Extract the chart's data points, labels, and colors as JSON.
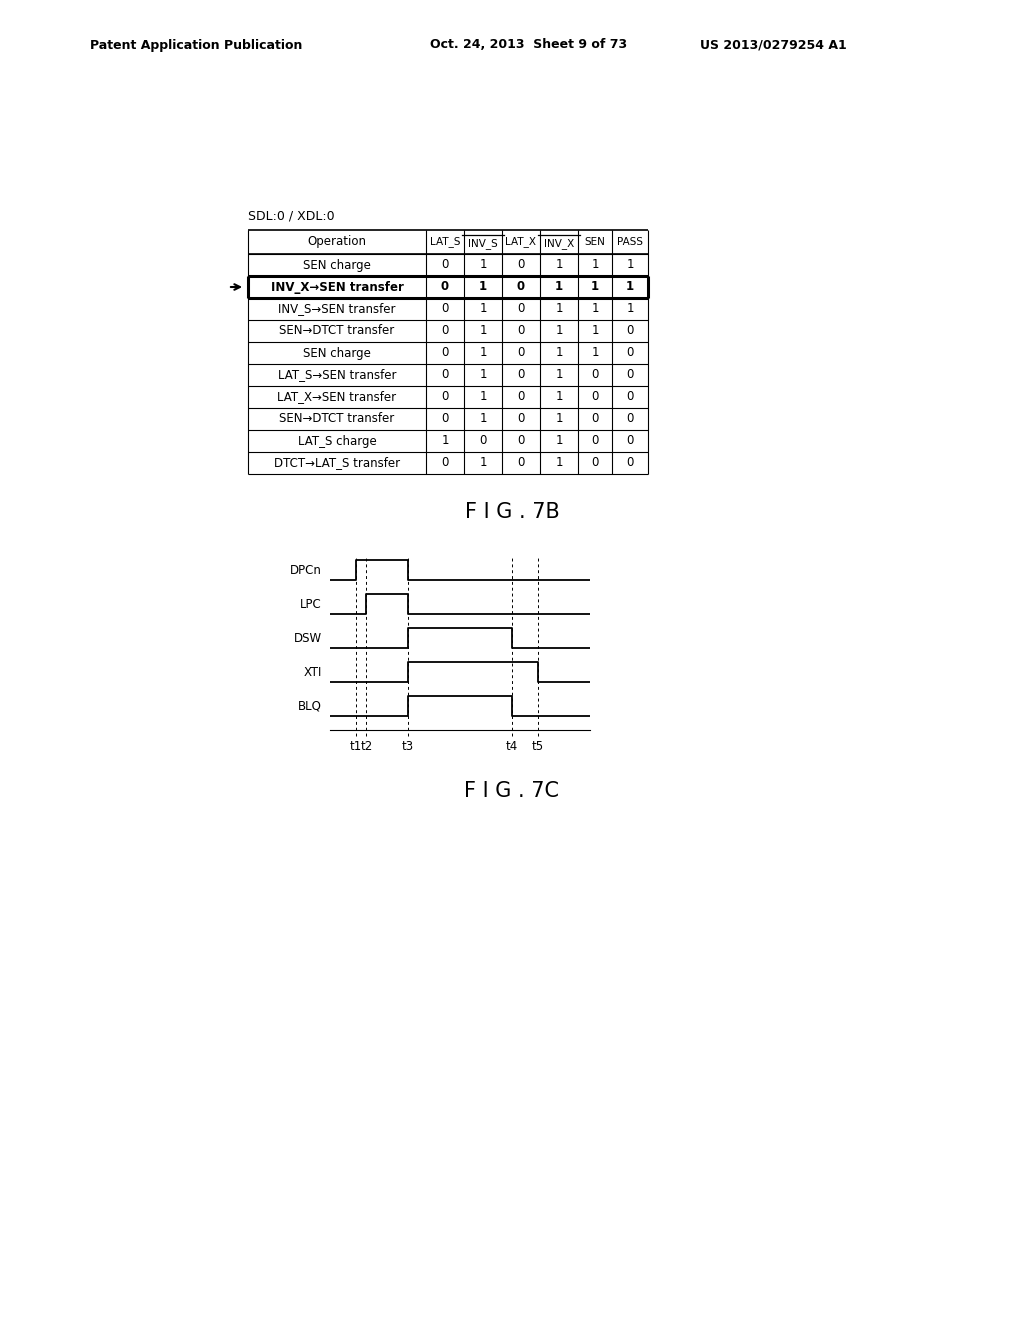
{
  "header_left": "Patent Application Publication",
  "header_mid": "Oct. 24, 2013  Sheet 9 of 73",
  "header_right": "US 2013/0279254 A1",
  "table_label": "SDL:0 / XDL:0",
  "table_columns": [
    "Operation",
    "LAT_S",
    "INV_S",
    "LAT_X",
    "INV_X",
    "SEN",
    "PASS"
  ],
  "table_rows": [
    [
      "SEN charge",
      "0",
      "1",
      "0",
      "1",
      "1",
      "1"
    ],
    [
      "INV_X→SEN transfer",
      "0",
      "1",
      "0",
      "1",
      "1",
      "1"
    ],
    [
      "INV_S→SEN transfer",
      "0",
      "1",
      "0",
      "1",
      "1",
      "1"
    ],
    [
      "SEN→DTCT transfer",
      "0",
      "1",
      "0",
      "1",
      "1",
      "0"
    ],
    [
      "SEN charge",
      "0",
      "1",
      "0",
      "1",
      "1",
      "0"
    ],
    [
      "LAT_S→SEN transfer",
      "0",
      "1",
      "0",
      "1",
      "0",
      "0"
    ],
    [
      "LAT_X→SEN transfer",
      "0",
      "1",
      "0",
      "1",
      "0",
      "0"
    ],
    [
      "SEN→DTCT transfer",
      "0",
      "1",
      "0",
      "1",
      "0",
      "0"
    ],
    [
      "LAT_S charge",
      "1",
      "0",
      "0",
      "1",
      "0",
      "0"
    ],
    [
      "DTCT→LAT_S transfer",
      "0",
      "1",
      "0",
      "1",
      "0",
      "0"
    ]
  ],
  "arrow_row": 1,
  "bold_row": 1,
  "fig7b_label": "F I G . 7B",
  "fig7c_label": "F I G . 7C",
  "signals": [
    "DPCn",
    "LPC",
    "DSW",
    "XTI",
    "BLQ"
  ],
  "signal_rise": [
    0.5,
    0.7,
    1.5,
    1.5,
    1.5
  ],
  "signal_fall": [
    1.5,
    1.5,
    3.5,
    4.0,
    3.5
  ],
  "time_labels": [
    "t1",
    "t2",
    "t3",
    "t4",
    "t5"
  ],
  "time_positions": [
    0.5,
    0.7,
    1.5,
    3.5,
    4.0
  ],
  "background_color": "#ffffff",
  "text_color": "#000000",
  "line_color": "#000000"
}
